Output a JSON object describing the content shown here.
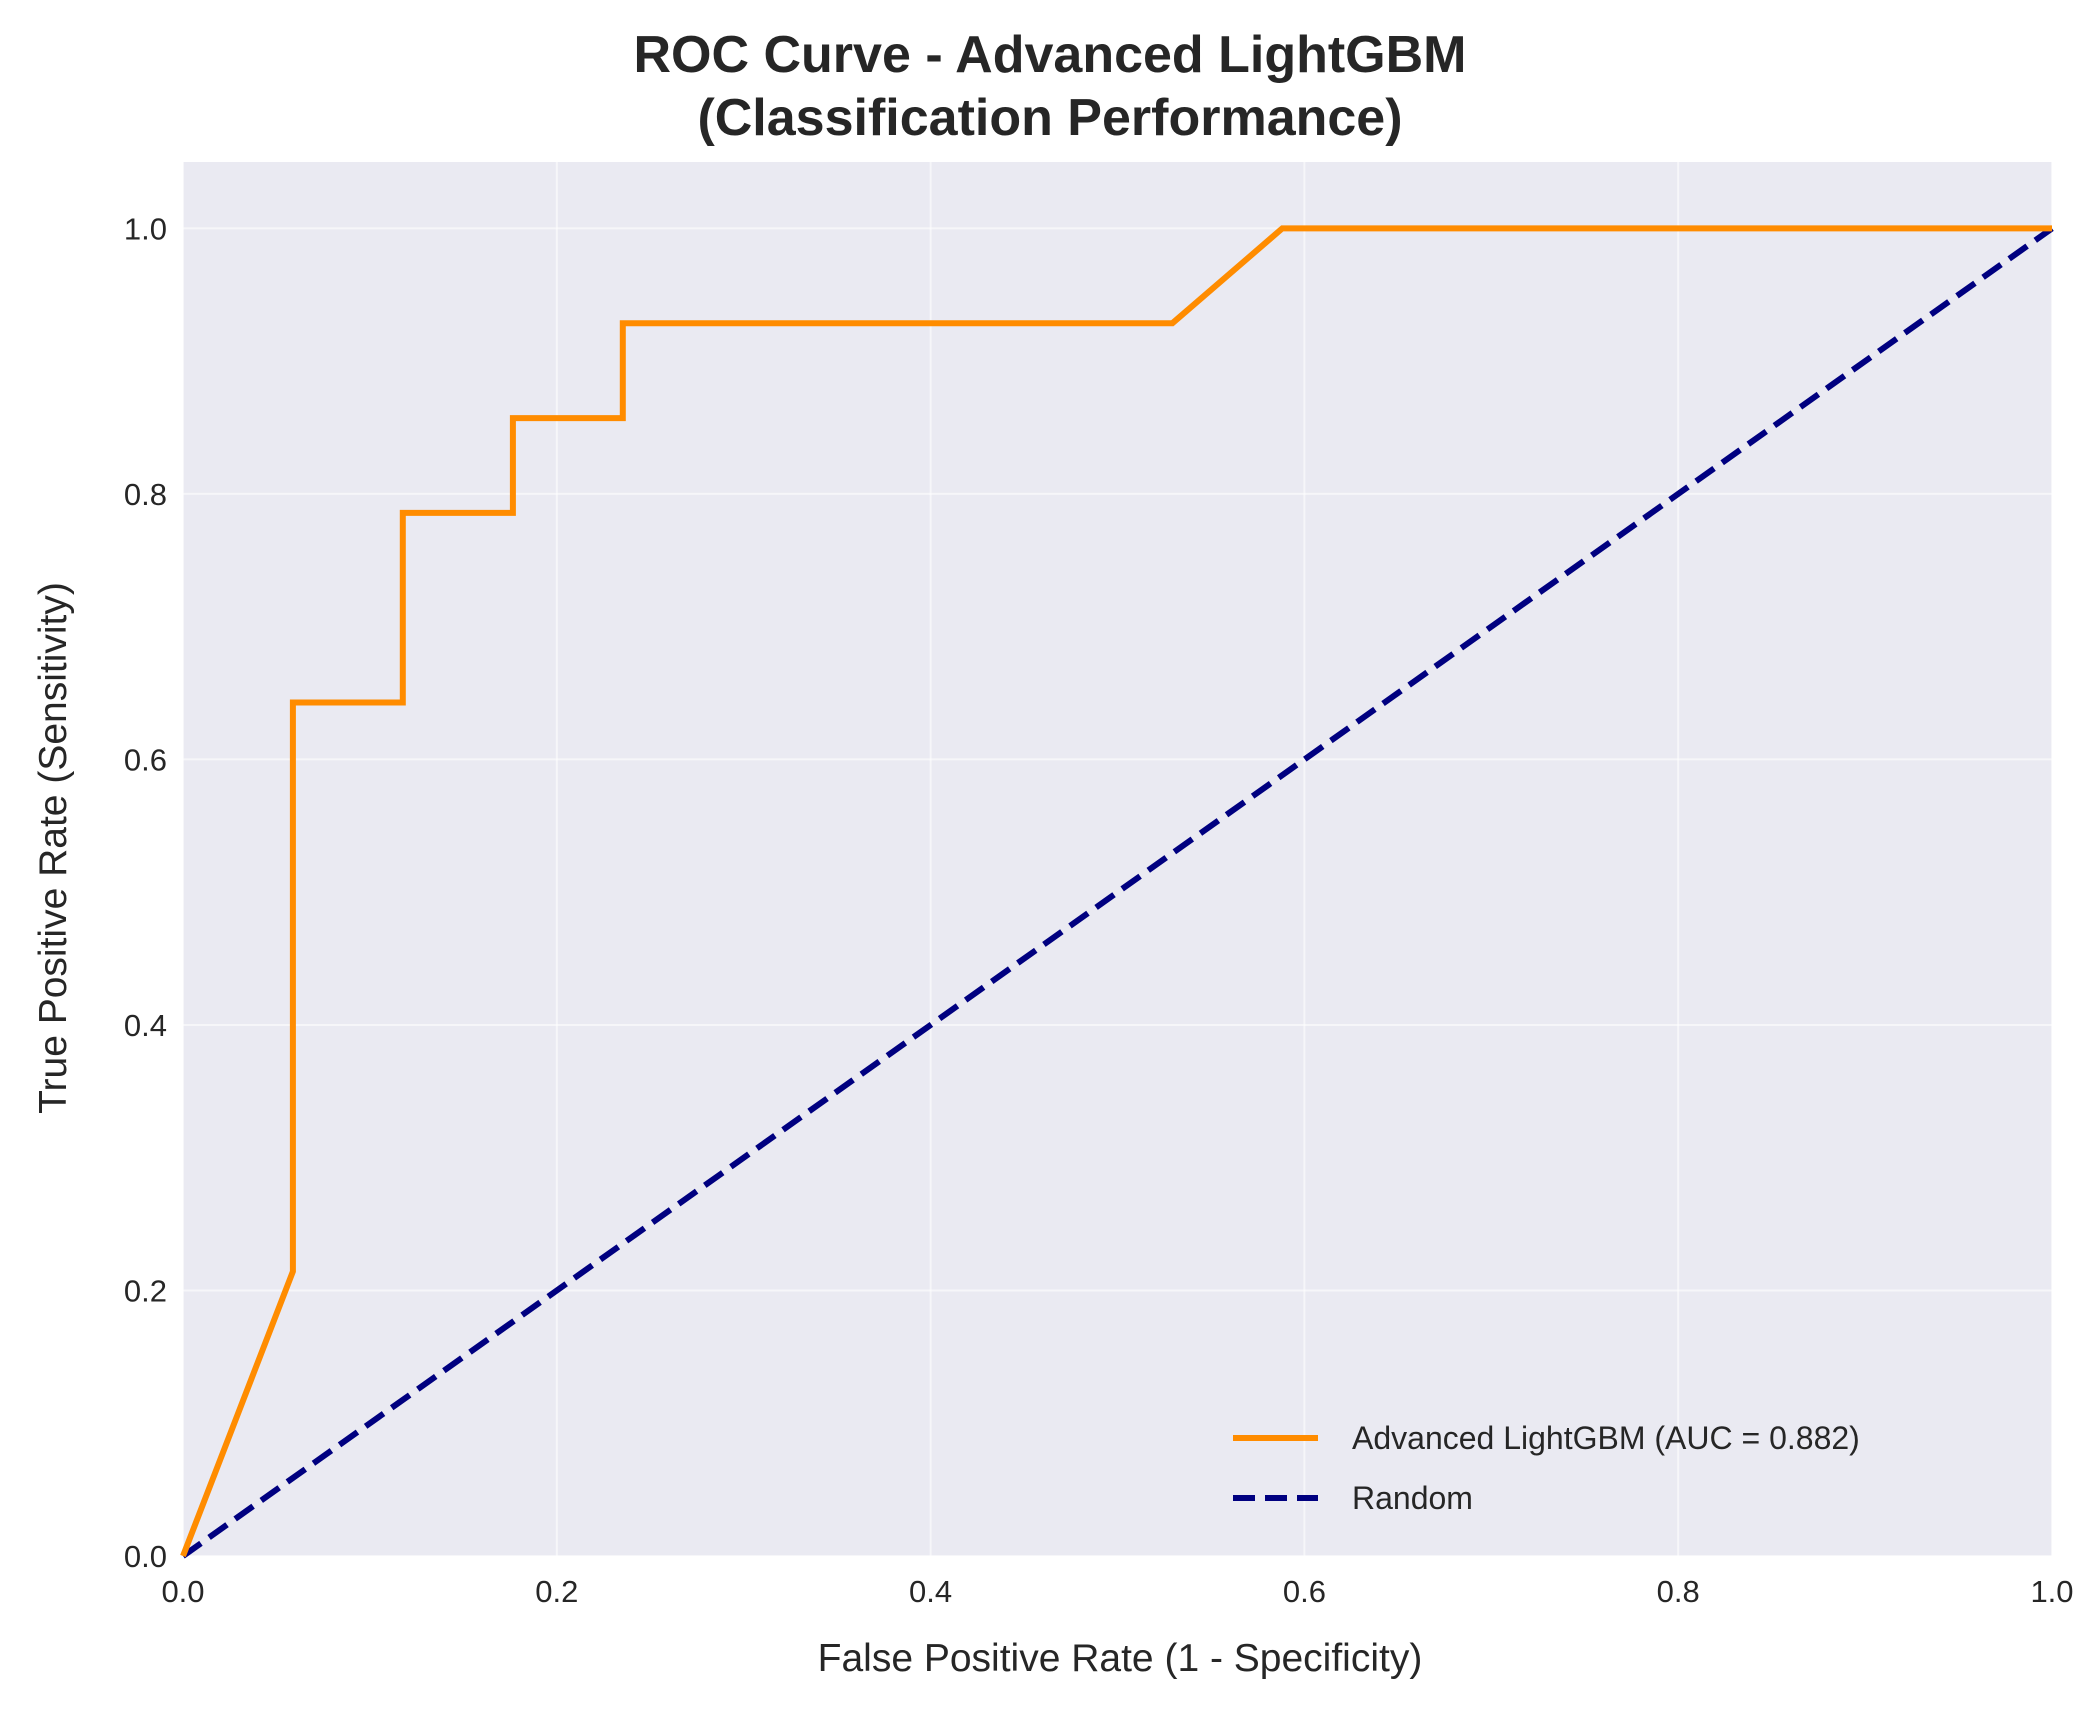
{
  "chart_data": {
    "type": "line",
    "title_lines": [
      "ROC Curve - Advanced LightGBM",
      "(Classification Performance)"
    ],
    "xlabel": "False Positive Rate (1 - Specificity)",
    "ylabel": "True Positive Rate (Sensitivity)",
    "xlim": [
      0.0,
      1.0
    ],
    "ylim": [
      0.0,
      1.05
    ],
    "xticks": [
      0.0,
      0.2,
      0.4,
      0.6,
      0.8,
      1.0
    ],
    "yticks": [
      0.0,
      0.2,
      0.4,
      0.6,
      0.8,
      1.0
    ],
    "xtick_labels": [
      "0.0",
      "0.2",
      "0.4",
      "0.6",
      "0.8",
      "1.0"
    ],
    "ytick_labels": [
      "0.0",
      "0.2",
      "0.4",
      "0.6",
      "0.8",
      "1.0"
    ],
    "grid": true,
    "legend_position": "lower-right",
    "background_color": "#eaeaf2",
    "series": [
      {
        "name": "Advanced LightGBM (AUC = 0.882)",
        "color": "#ff8c00",
        "style": "solid",
        "x": [
          0.0,
          0.0588,
          0.0588,
          0.1176,
          0.1176,
          0.1765,
          0.1765,
          0.2353,
          0.2353,
          0.5294,
          0.5882,
          1.0
        ],
        "y": [
          0.0,
          0.2143,
          0.6429,
          0.6429,
          0.7857,
          0.7857,
          0.8571,
          0.8571,
          0.9286,
          0.9286,
          1.0,
          1.0
        ]
      },
      {
        "name": "Random",
        "color": "#000080",
        "style": "dashed",
        "x": [
          0.0,
          1.0
        ],
        "y": [
          0.0,
          1.0
        ]
      }
    ]
  }
}
